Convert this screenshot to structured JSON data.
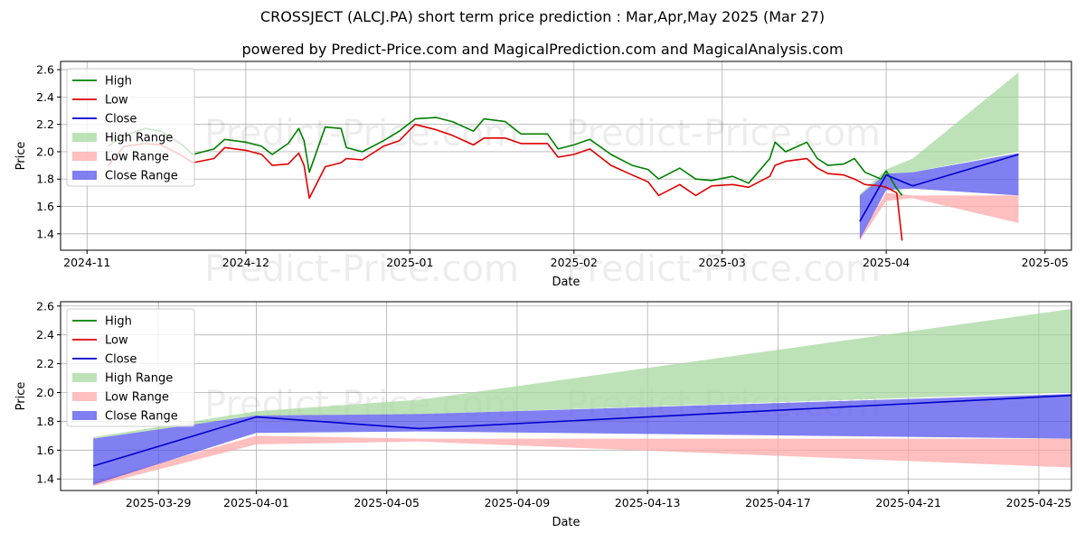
{
  "header": {
    "title": "CROSSJECT (ALCJ.PA) short term price prediction : Mar,Apr,May 2025 (Mar 27)",
    "subtitle": "powered by Predict-Price.com and MagicalPrediction.com and MagicalAnalysis.com"
  },
  "watermark": "Predict-Price.com",
  "colors": {
    "high": "#008000",
    "low": "#e00000",
    "close": "#0000cc",
    "high_range": "#a8d8a0",
    "low_range": "#ffaaaa",
    "close_range": "#5555ee",
    "grid": "#b0b0b0"
  },
  "chart_data": [
    {
      "type": "line",
      "xlabel": "Date",
      "ylabel": "Price",
      "xlim": [
        "2024-10-27",
        "2025-05-06"
      ],
      "ylim": [
        1.28,
        2.66
      ],
      "grid": true,
      "legend_position": "top-left",
      "x_ticks": [
        "2024-11",
        "2024-12",
        "2025-01",
        "2025-02",
        "2025-03",
        "2025-04",
        "2025-05"
      ],
      "y_ticks": [
        1.4,
        1.6,
        1.8,
        2.0,
        2.2,
        2.4,
        2.6
      ],
      "legend": [
        "High",
        "Low",
        "Close",
        "High Range",
        "Low Range",
        "Close Range"
      ],
      "series": [
        {
          "name": "High",
          "points": [
            [
              "2024-11-05",
              2.04
            ],
            [
              "2024-11-08",
              2.12
            ],
            [
              "2024-11-12",
              2.17
            ],
            [
              "2024-11-15",
              2.15
            ],
            [
              "2024-11-19",
              2.05
            ],
            [
              "2024-11-21",
              1.98
            ],
            [
              "2024-11-25",
              2.02
            ],
            [
              "2024-11-27",
              2.09
            ],
            [
              "2024-12-01",
              2.07
            ],
            [
              "2024-12-04",
              2.04
            ],
            [
              "2024-12-06",
              1.98
            ],
            [
              "2024-12-09",
              2.06
            ],
            [
              "2024-12-11",
              2.17
            ],
            [
              "2024-12-12",
              2.08
            ],
            [
              "2024-12-13",
              1.85
            ],
            [
              "2024-12-16",
              2.18
            ],
            [
              "2024-12-19",
              2.17
            ],
            [
              "2024-12-20",
              2.03
            ],
            [
              "2024-12-23",
              2.0
            ],
            [
              "2024-12-27",
              2.08
            ],
            [
              "2024-12-30",
              2.15
            ],
            [
              "2025-01-02",
              2.24
            ],
            [
              "2025-01-06",
              2.25
            ],
            [
              "2025-01-09",
              2.22
            ],
            [
              "2025-01-13",
              2.15
            ],
            [
              "2025-01-15",
              2.24
            ],
            [
              "2025-01-19",
              2.22
            ],
            [
              "2025-01-22",
              2.13
            ],
            [
              "2025-01-27",
              2.13
            ],
            [
              "2025-01-29",
              2.02
            ],
            [
              "2025-02-01",
              2.05
            ],
            [
              "2025-02-04",
              2.09
            ],
            [
              "2025-02-08",
              1.98
            ],
            [
              "2025-02-12",
              1.9
            ],
            [
              "2025-02-15",
              1.87
            ],
            [
              "2025-02-17",
              1.8
            ],
            [
              "2025-02-21",
              1.88
            ],
            [
              "2025-02-24",
              1.8
            ],
            [
              "2025-02-27",
              1.79
            ],
            [
              "2025-03-03",
              1.82
            ],
            [
              "2025-03-06",
              1.77
            ],
            [
              "2025-03-10",
              1.95
            ],
            [
              "2025-03-11",
              2.07
            ],
            [
              "2025-03-13",
              2.0
            ],
            [
              "2025-03-17",
              2.07
            ],
            [
              "2025-03-19",
              1.95
            ],
            [
              "2025-03-21",
              1.9
            ],
            [
              "2025-03-24",
              1.91
            ],
            [
              "2025-03-26",
              1.95
            ],
            [
              "2025-03-28",
              1.85
            ],
            [
              "2025-03-31",
              1.8
            ],
            [
              "2025-04-01",
              1.86
            ],
            [
              "2025-04-03",
              1.73
            ],
            [
              "2025-04-04",
              1.68
            ]
          ]
        },
        {
          "name": "Low",
          "points": [
            [
              "2024-11-05",
              1.9
            ],
            [
              "2024-11-08",
              2.04
            ],
            [
              "2024-11-12",
              2.06
            ],
            [
              "2024-11-15",
              2.05
            ],
            [
              "2024-11-19",
              1.97
            ],
            [
              "2024-11-21",
              1.92
            ],
            [
              "2024-11-25",
              1.95
            ],
            [
              "2024-11-27",
              2.03
            ],
            [
              "2024-12-01",
              2.01
            ],
            [
              "2024-12-04",
              1.98
            ],
            [
              "2024-12-06",
              1.9
            ],
            [
              "2024-12-09",
              1.91
            ],
            [
              "2024-12-11",
              1.99
            ],
            [
              "2024-12-12",
              1.9
            ],
            [
              "2024-12-13",
              1.66
            ],
            [
              "2024-12-16",
              1.89
            ],
            [
              "2024-12-19",
              1.92
            ],
            [
              "2024-12-20",
              1.95
            ],
            [
              "2024-12-23",
              1.94
            ],
            [
              "2024-12-27",
              2.04
            ],
            [
              "2024-12-30",
              2.08
            ],
            [
              "2025-01-02",
              2.2
            ],
            [
              "2025-01-06",
              2.16
            ],
            [
              "2025-01-09",
              2.12
            ],
            [
              "2025-01-13",
              2.05
            ],
            [
              "2025-01-15",
              2.1
            ],
            [
              "2025-01-19",
              2.1
            ],
            [
              "2025-01-22",
              2.06
            ],
            [
              "2025-01-27",
              2.06
            ],
            [
              "2025-01-29",
              1.96
            ],
            [
              "2025-02-01",
              1.98
            ],
            [
              "2025-02-04",
              2.02
            ],
            [
              "2025-02-08",
              1.9
            ],
            [
              "2025-02-12",
              1.83
            ],
            [
              "2025-02-15",
              1.78
            ],
            [
              "2025-02-17",
              1.68
            ],
            [
              "2025-02-21",
              1.76
            ],
            [
              "2025-02-24",
              1.68
            ],
            [
              "2025-02-27",
              1.75
            ],
            [
              "2025-03-03",
              1.76
            ],
            [
              "2025-03-06",
              1.74
            ],
            [
              "2025-03-10",
              1.82
            ],
            [
              "2025-03-11",
              1.9
            ],
            [
              "2025-03-13",
              1.93
            ],
            [
              "2025-03-17",
              1.95
            ],
            [
              "2025-03-19",
              1.88
            ],
            [
              "2025-03-21",
              1.84
            ],
            [
              "2025-03-24",
              1.83
            ],
            [
              "2025-03-26",
              1.8
            ],
            [
              "2025-03-28",
              1.76
            ],
            [
              "2025-03-31",
              1.75
            ],
            [
              "2025-04-01",
              1.74
            ],
            [
              "2025-04-03",
              1.7
            ],
            [
              "2025-04-04",
              1.35
            ]
          ]
        },
        {
          "name": "Close",
          "points": [
            [
              "2025-03-27",
              1.49
            ],
            [
              "2025-04-01",
              1.83
            ],
            [
              "2025-04-06",
              1.75
            ],
            [
              "2025-04-26",
              1.98
            ]
          ]
        }
      ],
      "bands": [
        {
          "name": "High Range",
          "x": [
            "2025-03-27",
            "2025-04-01",
            "2025-04-06",
            "2025-04-26"
          ],
          "lower": [
            1.68,
            1.84,
            1.85,
            2.0
          ],
          "upper": [
            1.69,
            1.87,
            1.95,
            2.58
          ]
        },
        {
          "name": "Low Range",
          "x": [
            "2025-03-27",
            "2025-04-01",
            "2025-04-06",
            "2025-04-26"
          ],
          "lower": [
            1.35,
            1.64,
            1.66,
            1.48
          ],
          "upper": [
            1.38,
            1.7,
            1.68,
            1.68
          ]
        },
        {
          "name": "Close Range",
          "x": [
            "2025-03-27",
            "2025-04-01",
            "2025-04-06",
            "2025-04-26"
          ],
          "lower": [
            1.36,
            1.72,
            1.73,
            1.68
          ],
          "upper": [
            1.68,
            1.84,
            1.85,
            1.99
          ]
        }
      ]
    },
    {
      "type": "line",
      "xlabel": "Date",
      "ylabel": "Price",
      "xlim": [
        "2025-03-26",
        "2025-04-26"
      ],
      "ylim": [
        1.32,
        2.63
      ],
      "grid": true,
      "legend_position": "top-left",
      "x_ticks": [
        "2025-03-29",
        "2025-04-01",
        "2025-04-05",
        "2025-04-09",
        "2025-04-13",
        "2025-04-17",
        "2025-04-21",
        "2025-04-25"
      ],
      "y_ticks": [
        1.4,
        1.6,
        1.8,
        2.0,
        2.2,
        2.4,
        2.6
      ],
      "legend": [
        "High",
        "Low",
        "Close",
        "High Range",
        "Low Range",
        "Close Range"
      ],
      "series": [
        {
          "name": "Close",
          "points": [
            [
              "2025-03-27",
              1.49
            ],
            [
              "2025-04-01",
              1.83
            ],
            [
              "2025-04-06",
              1.75
            ],
            [
              "2025-04-26",
              1.98
            ]
          ]
        }
      ],
      "bands": [
        {
          "name": "High Range",
          "x": [
            "2025-03-27",
            "2025-04-01",
            "2025-04-06",
            "2025-04-26"
          ],
          "lower": [
            1.68,
            1.84,
            1.85,
            2.0
          ],
          "upper": [
            1.69,
            1.87,
            1.95,
            2.58
          ]
        },
        {
          "name": "Low Range",
          "x": [
            "2025-03-27",
            "2025-04-01",
            "2025-04-06",
            "2025-04-26"
          ],
          "lower": [
            1.35,
            1.64,
            1.66,
            1.48
          ],
          "upper": [
            1.38,
            1.7,
            1.68,
            1.68
          ]
        },
        {
          "name": "Close Range",
          "x": [
            "2025-03-27",
            "2025-04-01",
            "2025-04-06",
            "2025-04-26"
          ],
          "lower": [
            1.36,
            1.72,
            1.73,
            1.68
          ],
          "upper": [
            1.68,
            1.84,
            1.85,
            1.99
          ]
        }
      ]
    }
  ]
}
